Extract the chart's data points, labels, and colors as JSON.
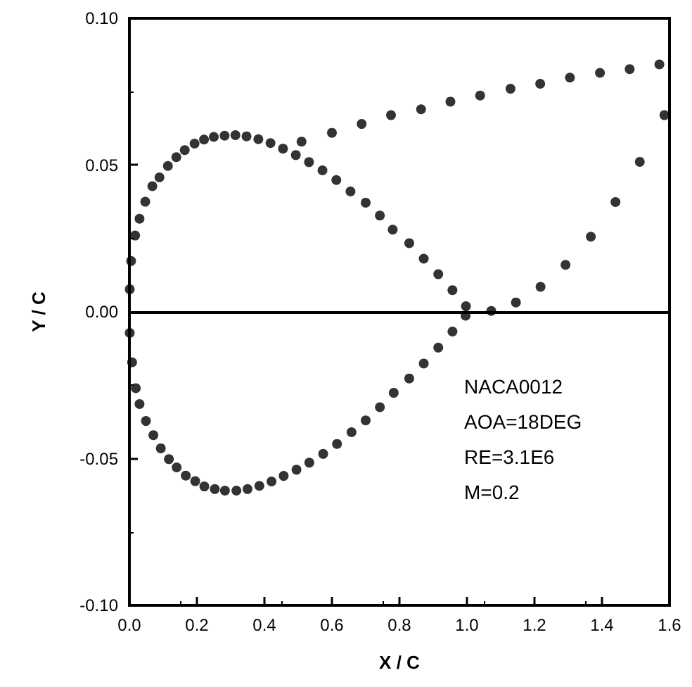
{
  "chart_data": {
    "type": "scatter",
    "xlabel": "X / C",
    "ylabel": "Y / C",
    "xlim": [
      0,
      1.6
    ],
    "xticks": [
      {
        "value": 0,
        "label": "0.0"
      },
      0.2,
      0.4,
      0.6,
      0.8,
      {
        "value": 1,
        "label": "1.0"
      },
      1.2,
      1.4,
      1.6
    ],
    "ylim": [
      -0.1,
      0.1
    ],
    "yticks": [
      {
        "value": -0.1,
        "label": "-0.10"
      },
      {
        "value": -0.05,
        "label": "-0.05"
      },
      {
        "value": 0,
        "label": "0.00"
      },
      {
        "value": 0.05,
        "label": "0.05"
      },
      {
        "value": 0.1,
        "label": "0.10"
      }
    ],
    "marker": "circle",
    "grid": false,
    "ref_lines": [
      {
        "axis": "y",
        "value": 0,
        "color": "#000000"
      }
    ],
    "annotations": [
      "NACA0012",
      "AOA=18DEG",
      "RE=3.1E6",
      "M=0.2"
    ],
    "series": [
      {
        "color": "#000000",
        "x": [
          0.001,
          0.005,
          0.017,
          0.03,
          0.047,
          0.068,
          0.089,
          0.114,
          0.139,
          0.164,
          0.193,
          0.221,
          0.25,
          0.282,
          0.314,
          0.347,
          0.382,
          0.418,
          0.455,
          0.493,
          0.532,
          0.572,
          0.613,
          0.655,
          0.7,
          0.742,
          0.78,
          0.829,
          0.872,
          0.915,
          0.957,
          0.997
        ],
        "values": [
          0.0077,
          0.0173,
          0.026,
          0.0317,
          0.0375,
          0.0428,
          0.0458,
          0.0497,
          0.0527,
          0.0551,
          0.0573,
          0.0587,
          0.0596,
          0.06,
          0.0602,
          0.0598,
          0.0588,
          0.0575,
          0.0556,
          0.0534,
          0.051,
          0.0482,
          0.0449,
          0.041,
          0.0372,
          0.0328,
          0.028,
          0.0234,
          0.0181,
          0.0128,
          0.0074,
          0.0019
        ]
      },
      {
        "color": "#000000",
        "x": [
          0.001,
          0.008,
          0.019,
          0.03,
          0.049,
          0.071,
          0.093,
          0.117,
          0.14,
          0.167,
          0.195,
          0.222,
          0.253,
          0.283,
          0.317,
          0.35,
          0.385,
          0.421,
          0.457,
          0.495,
          0.533,
          0.574,
          0.615,
          0.658,
          0.7,
          0.742,
          0.783,
          0.829,
          0.872,
          0.915,
          0.957,
          0.996
        ],
        "values": [
          -0.0072,
          -0.0172,
          -0.026,
          -0.0314,
          -0.0372,
          -0.042,
          -0.0465,
          -0.0502,
          -0.053,
          -0.0558,
          -0.0577,
          -0.0595,
          -0.0604,
          -0.0609,
          -0.0609,
          -0.0604,
          -0.0593,
          -0.0578,
          -0.0559,
          -0.0538,
          -0.0514,
          -0.0484,
          -0.045,
          -0.041,
          -0.037,
          -0.0325,
          -0.0276,
          -0.0227,
          -0.0176,
          -0.0122,
          -0.0067,
          -0.0013
        ]
      },
      {
        "color": "#000000",
        "x": [
          0.51,
          0.6,
          0.688,
          0.775,
          0.864,
          0.951,
          1.039,
          1.129,
          1.217,
          1.305,
          1.394,
          1.482,
          1.57
        ],
        "values": [
          0.058,
          0.061,
          0.064,
          0.067,
          0.069,
          0.0716,
          0.0737,
          0.076,
          0.0777,
          0.0798,
          0.0814,
          0.0827,
          0.0843
        ]
      },
      {
        "color": "#000000",
        "x": [
          1.072,
          1.145,
          1.218,
          1.292,
          1.367,
          1.44,
          1.512,
          1.585
        ],
        "values": [
          0.0003,
          0.0032,
          0.0085,
          0.016,
          0.0256,
          0.0374,
          0.0511,
          0.067
        ]
      }
    ]
  }
}
